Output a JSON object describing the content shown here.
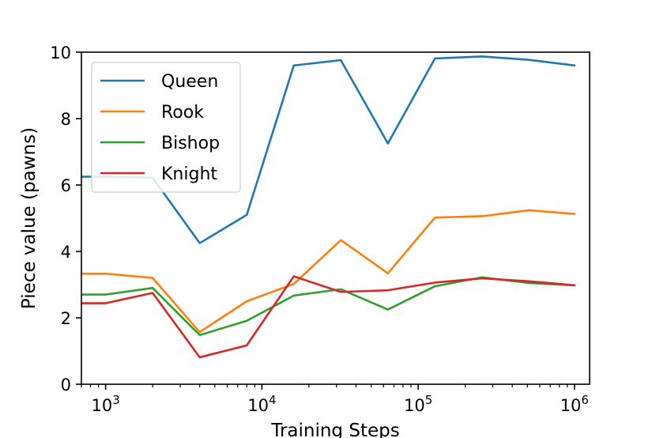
{
  "chart_data": {
    "type": "line",
    "title": "",
    "xlabel": "Training Steps",
    "ylabel": "Piece value (pawns)",
    "x_scale": "log",
    "xlim": [
      700,
      1250000
    ],
    "ylim": [
      0,
      10
    ],
    "x_ticks": [
      {
        "value": 1000,
        "base": "10",
        "exp": "3"
      },
      {
        "value": 10000,
        "base": "10",
        "exp": "4"
      },
      {
        "value": 100000,
        "base": "10",
        "exp": "5"
      },
      {
        "value": 1000000,
        "base": "10",
        "exp": "6"
      }
    ],
    "y_ticks": [
      0,
      2,
      4,
      6,
      8,
      10
    ],
    "grid": false,
    "legend_position": "top-left",
    "x": [
      700,
      1000,
      2000,
      4000,
      8000,
      16000,
      32000,
      64000,
      128000,
      256000,
      512000,
      1000000
    ],
    "series": [
      {
        "name": "Queen",
        "color": "#1f77b4",
        "values": [
          6.25,
          6.25,
          6.22,
          4.25,
          5.1,
          9.6,
          9.76,
          7.25,
          9.81,
          9.87,
          9.77,
          9.6
        ]
      },
      {
        "name": "Rook",
        "color": "#ff7f0e",
        "values": [
          3.33,
          3.33,
          3.2,
          1.57,
          2.5,
          3.02,
          4.34,
          3.34,
          5.02,
          5.06,
          5.24,
          5.13
        ]
      },
      {
        "name": "Bishop",
        "color": "#2ca02c",
        "values": [
          2.7,
          2.7,
          2.9,
          1.48,
          1.91,
          2.67,
          2.86,
          2.25,
          2.95,
          3.22,
          3.05,
          2.98
        ]
      },
      {
        "name": "Knight",
        "color": "#d62728",
        "values": [
          2.44,
          2.44,
          2.75,
          0.81,
          1.17,
          3.25,
          2.78,
          2.83,
          3.06,
          3.19,
          3.1,
          2.98
        ]
      }
    ]
  }
}
